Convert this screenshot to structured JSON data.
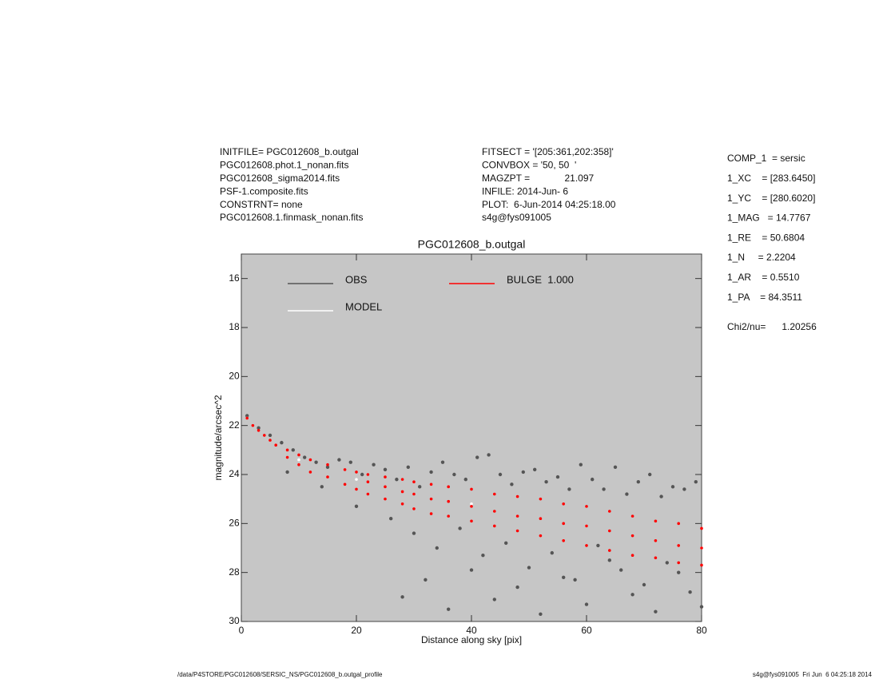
{
  "header": {
    "left": [
      "INITFILE= PGC012608_b.outgal",
      "PGC012608.phot.1_nonan.fits",
      "PGC012608_sigma2014.fits",
      "PSF-1.composite.fits",
      "CONSTRNT= none",
      "PGC012608.1.finmask_nonan.fits"
    ],
    "middle": [
      "FITSECT = '[205:361,202:358]'",
      "CONVBOX = '50, 50  '",
      "MAGZPT =             21.097",
      "INFILE: 2014-Jun- 6",
      "PLOT:  6-Jun-2014 04:25:18.00",
      "s4g@fys091005"
    ],
    "right": [
      "COMP_1  = sersic",
      "1_XC    = [283.6450]",
      "1_YC    = [280.6020]",
      "1_MAG   = 14.7767",
      "1_RE    = 50.6804",
      "1_N     = 2.2204",
      "1_AR    = 0.5510",
      "1_PA    = 84.3511"
    ],
    "chi2": "Chi2/nu=      1.20256"
  },
  "footer": {
    "left": "/data/P4STORE/PGC012608/SERSIC_NS/PGC012608_b.outgal_profile",
    "right": "s4g@fys091005  Fri Jun  6 04:25:18 2014"
  },
  "chart_data": {
    "type": "scatter",
    "title": "PGC012608_b.outgal",
    "x_label": "Distance along sky [pix]",
    "y_label": "magnitude/arcsec^2",
    "xlim": [
      0,
      80
    ],
    "xticks": [
      0,
      20,
      40,
      60,
      80
    ],
    "ylim": [
      15,
      30
    ],
    "y_inverted": true,
    "yticks": [
      16,
      18,
      20,
      22,
      24,
      26,
      28,
      30
    ],
    "series": [
      {
        "name": "OBS",
        "color": "#555555",
        "x": [
          1,
          3,
          5,
          7,
          9,
          11,
          13,
          15,
          17,
          19,
          21,
          23,
          25,
          27,
          29,
          31,
          33,
          35,
          37,
          39,
          41,
          43,
          45,
          47,
          49,
          51,
          53,
          55,
          57,
          59,
          61,
          63,
          65,
          67,
          69,
          71,
          73,
          75,
          77,
          79,
          8,
          14,
          20,
          26,
          30,
          34,
          38,
          42,
          46,
          50,
          54,
          58,
          62,
          66,
          70,
          74,
          78,
          28,
          32,
          36,
          40,
          44,
          48,
          52,
          56,
          60,
          64,
          68,
          72,
          76,
          80
        ],
        "values": [
          21.6,
          22.1,
          22.4,
          22.7,
          23.0,
          23.3,
          23.5,
          23.7,
          23.4,
          23.5,
          24.0,
          23.6,
          23.8,
          24.2,
          23.7,
          24.5,
          23.9,
          23.5,
          24.0,
          24.2,
          23.3,
          23.2,
          24.0,
          24.4,
          23.9,
          23.8,
          24.3,
          24.1,
          24.6,
          23.6,
          24.2,
          24.6,
          23.7,
          24.8,
          24.3,
          24.0,
          24.9,
          24.5,
          24.6,
          24.3,
          23.9,
          24.5,
          25.3,
          25.8,
          26.4,
          27.0,
          26.2,
          27.3,
          26.8,
          27.8,
          27.2,
          28.3,
          26.9,
          27.9,
          28.5,
          27.6,
          28.8,
          29.0,
          28.3,
          29.5,
          27.9,
          29.1,
          28.6,
          29.7,
          28.2,
          29.3,
          27.5,
          28.9,
          29.6,
          28.0,
          29.4
        ]
      },
      {
        "name": "MODEL",
        "color": "#ffffff",
        "x": [
          1,
          10,
          20,
          40,
          60,
          80
        ],
        "values": [
          21.7,
          23.4,
          24.2,
          25.2,
          26.1,
          27.0
        ]
      },
      {
        "name": "BULGE  1.000",
        "color": "#ff0000",
        "x": [
          1,
          2,
          3,
          4,
          5,
          6,
          8,
          8,
          10,
          10,
          12,
          12,
          15,
          15,
          18,
          18,
          20,
          20,
          22,
          22,
          22,
          25,
          25,
          25,
          28,
          28,
          28,
          30,
          30,
          30,
          33,
          33,
          33,
          36,
          36,
          36,
          40,
          40,
          40,
          44,
          44,
          44,
          48,
          48,
          48,
          52,
          52,
          52,
          56,
          56,
          56,
          60,
          60,
          60,
          64,
          64,
          64,
          68,
          68,
          68,
          72,
          72,
          72,
          76,
          76,
          76,
          80,
          80,
          80
        ],
        "values": [
          21.7,
          22.0,
          22.2,
          22.4,
          22.6,
          22.8,
          23.0,
          23.3,
          23.2,
          23.6,
          23.4,
          23.9,
          23.6,
          24.1,
          23.8,
          24.4,
          23.9,
          24.6,
          24.0,
          24.3,
          24.8,
          24.1,
          24.5,
          25.0,
          24.2,
          24.7,
          25.2,
          24.3,
          24.8,
          25.4,
          24.4,
          25.0,
          25.6,
          24.5,
          25.1,
          25.7,
          24.6,
          25.3,
          25.9,
          24.8,
          25.5,
          26.1,
          24.9,
          25.7,
          26.3,
          25.0,
          25.8,
          26.5,
          25.2,
          26.0,
          26.7,
          25.3,
          26.1,
          26.9,
          25.5,
          26.3,
          27.1,
          25.7,
          26.5,
          27.3,
          25.9,
          26.7,
          27.4,
          26.0,
          26.9,
          27.6,
          26.2,
          27.0,
          27.7
        ]
      }
    ]
  }
}
